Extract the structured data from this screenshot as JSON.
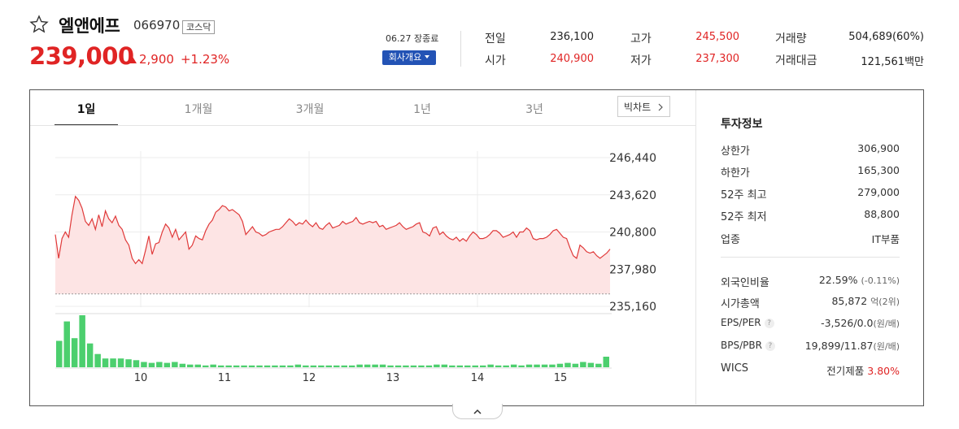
{
  "stock": {
    "name": "엘앤에프",
    "code": "066970",
    "market": "코스닥",
    "price": "239,000",
    "change": "2,900",
    "change_pct": "+1.23%",
    "close_info": "06.27 장종료",
    "company_button": "회사개요"
  },
  "summary": [
    {
      "label": "전일",
      "value": "236,100",
      "color": "#333333"
    },
    {
      "label": "시가",
      "value": "240,900",
      "color": "#e02424"
    },
    {
      "label": "고가",
      "value": "245,500",
      "color": "#e02424"
    },
    {
      "label": "저가",
      "value": "237,300",
      "color": "#e02424"
    },
    {
      "label": "거래량",
      "value": "504,689(60%)",
      "color": "#333333"
    },
    {
      "label": "거래대금",
      "value": "121,561백만",
      "color": "#333333"
    }
  ],
  "tabs": [
    "1일",
    "1개월",
    "3개월",
    "1년",
    "3년"
  ],
  "bigchart_label": "빅차트",
  "invest": {
    "title": "투자정보",
    "rows": [
      {
        "label": "상한가",
        "value": "306,900",
        "color": "#e02424"
      },
      {
        "label": "하한가",
        "value": "165,300",
        "color": "#1f4fb0"
      },
      {
        "label": "52주 최고",
        "value": "279,000",
        "color": "#333333"
      },
      {
        "label": "52주 최저",
        "value": "88,800",
        "color": "#333333"
      },
      {
        "label": "업종",
        "value": "IT부품",
        "color": "#333333"
      }
    ],
    "rows2": [
      {
        "label": "외국인비율",
        "value": "22.59%",
        "sub": "(-0.11%)"
      },
      {
        "label": "시가총액",
        "value": "85,872",
        "sub": "억(2위)"
      },
      {
        "label": "EPS/PER",
        "value": "-3,526/0.0",
        "sub": "(원/배)",
        "help": "?"
      },
      {
        "label": "BPS/PBR",
        "value": "19,899/11.87",
        "sub": "(원/배)",
        "help": "?"
      },
      {
        "label": "WICS",
        "value": "전기제품",
        "pct": "3.80%"
      }
    ]
  },
  "chart_data": {
    "type": "line",
    "y_ticks": [
      "246,440",
      "243,620",
      "240,800",
      "237,980",
      "235,160"
    ],
    "ylim": [
      235160,
      246440
    ],
    "x_ticks": [
      "10",
      "11",
      "12",
      "13",
      "14",
      "15"
    ],
    "prev_close": 236100,
    "price_series": [
      240600,
      238800,
      240300,
      240800,
      240400,
      242100,
      243500,
      243200,
      242600,
      241600,
      241300,
      241800,
      241000,
      242100,
      241200,
      242400,
      241800,
      241500,
      242000,
      241300,
      241000,
      240200,
      239800,
      238800,
      238400,
      238700,
      238400,
      239400,
      240500,
      239100,
      239900,
      240000,
      240800,
      241400,
      241100,
      240400,
      241000,
      240200,
      240500,
      240800,
      239500,
      239800,
      240500,
      240300,
      240200,
      240900,
      241400,
      241700,
      242300,
      242500,
      242800,
      242700,
      242400,
      242500,
      242300,
      242100,
      241600,
      240600,
      240900,
      241200,
      240800,
      240700,
      240500,
      240600,
      240800,
      240900,
      241000,
      241000,
      241200,
      241500,
      241800,
      241600,
      241300,
      241500,
      241400,
      241700,
      241400,
      241200,
      241500,
      241100,
      241000,
      241300,
      241500,
      241100,
      241200,
      241300,
      241600,
      241400,
      241500,
      241600,
      241900,
      241500,
      241400,
      241500,
      241600,
      241500,
      241600,
      241200,
      241300,
      241000,
      241100,
      241200,
      241300,
      241500,
      241200,
      241000,
      241100,
      241200,
      241400,
      241500,
      240800,
      240700,
      240500,
      241100,
      241200,
      240600,
      240800,
      240500,
      240300,
      240200,
      240400,
      240100,
      240300,
      240100,
      240500,
      240800,
      240600,
      240300,
      240300,
      240400,
      240600,
      240900,
      240900,
      240700,
      240400,
      240500,
      240600,
      240800,
      240400,
      240800,
      240800,
      241100,
      240900,
      240300,
      240200,
      240300,
      240300,
      240400,
      240600,
      240900,
      241000,
      240700,
      240400,
      240300,
      239600,
      239000,
      238800,
      239800,
      239600,
      239300,
      239200,
      239300,
      239000,
      238800,
      239000,
      239200,
      239500
    ],
    "volume_series": [
      30,
      52,
      33,
      59,
      27,
      15,
      10,
      10,
      10,
      9,
      8,
      6,
      5,
      6,
      5,
      6,
      4,
      3,
      3,
      2,
      3,
      2,
      2,
      2,
      2,
      2,
      2,
      2,
      2,
      2,
      2,
      3,
      2,
      2,
      2,
      2,
      2,
      2,
      2,
      3,
      3,
      3,
      3,
      2,
      2,
      2,
      2,
      2,
      2,
      3,
      3,
      2,
      2,
      2,
      2,
      2,
      3,
      2,
      2,
      3,
      2,
      3,
      3,
      3,
      3,
      4,
      5,
      4,
      6,
      5,
      4,
      12
    ]
  }
}
